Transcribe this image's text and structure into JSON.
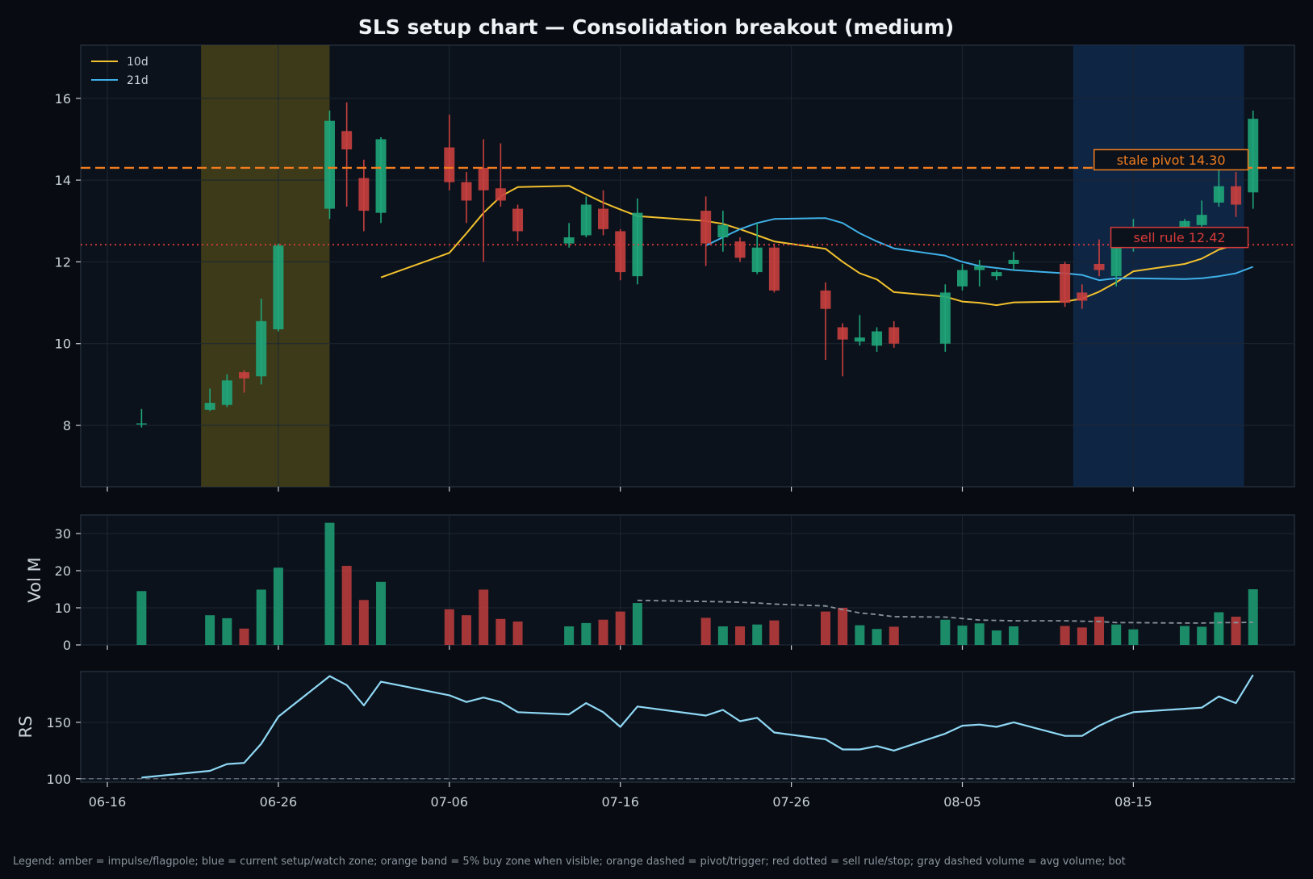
{
  "chart_data": {
    "type": "candlestick",
    "title": "SLS setup chart — Consolidation breakout (medium)",
    "footer_legend": "Legend: amber = impulse/flagpole; blue = current setup/watch zone; orange band = 5% buy zone when visible; orange dashed = pivot/trigger; red dotted = sell rule/stop; gray dashed volume = avg volume; bot",
    "x_ticks": [
      "06-16",
      "06-26",
      "07-06",
      "07-16",
      "07-26",
      "08-05",
      "08-15"
    ],
    "colors": {
      "background": "#080c12",
      "panel": "#0b121b",
      "up": "#1fa67a",
      "down": "#c8403f",
      "ma10": "#f2c12e",
      "ma21": "#3fb1e8",
      "pivot": "#f07c1f",
      "sell": "#d63a3a",
      "rs": "#8fd8f5",
      "avg_volume": "#8b949e",
      "impulse_zone": "#4a4518",
      "watch_zone": "#102a4f"
    },
    "price_panel": {
      "ylim": [
        6.5,
        17.3
      ],
      "yticks": [
        8,
        10,
        12,
        14,
        16
      ],
      "legend": [
        {
          "label": "10d",
          "color": "#f2c12e"
        },
        {
          "label": "21d",
          "color": "#3fb1e8"
        }
      ],
      "legend_position": "top-left",
      "impulse_zone": {
        "from": "06-22",
        "to": "06-29"
      },
      "watch_zone": {
        "from": "08-12",
        "to": "08-21"
      },
      "pivot": {
        "value": 14.3,
        "label": "stale pivot 14.30"
      },
      "sell_rule": {
        "value": 12.42,
        "label": "sell rule 12.42"
      }
    },
    "volume_panel": {
      "ylabel": "Vol M",
      "ylim": [
        0,
        35
      ],
      "yticks": [
        0,
        10,
        20,
        30
      ]
    },
    "rs_panel": {
      "ylabel": "RS",
      "ylim": [
        97,
        195
      ],
      "yticks": [
        100,
        150
      ],
      "baseline": 100
    },
    "candles": [
      {
        "d": "06-18",
        "o": 8.05,
        "h": 8.4,
        "l": 7.95,
        "c": 8.05,
        "v": 14.5
      },
      {
        "d": "06-22",
        "o": 8.38,
        "h": 8.9,
        "l": 8.35,
        "c": 8.55,
        "v": 8.0
      },
      {
        "d": "06-23",
        "o": 8.5,
        "h": 9.25,
        "l": 8.45,
        "c": 9.1,
        "v": 7.2
      },
      {
        "d": "06-24",
        "o": 9.3,
        "h": 9.35,
        "l": 8.8,
        "c": 9.15,
        "v": 4.4
      },
      {
        "d": "06-25",
        "o": 9.2,
        "h": 11.1,
        "l": 9.0,
        "c": 10.55,
        "v": 14.9
      },
      {
        "d": "06-26",
        "o": 10.35,
        "h": 12.45,
        "l": 10.3,
        "c": 12.4,
        "v": 20.8
      },
      {
        "d": "06-29",
        "o": 13.3,
        "h": 15.7,
        "l": 13.05,
        "c": 15.45,
        "v": 32.9
      },
      {
        "d": "06-30",
        "o": 15.2,
        "h": 15.9,
        "l": 13.35,
        "c": 14.75,
        "v": 21.3
      },
      {
        "d": "07-01",
        "o": 14.05,
        "h": 14.5,
        "l": 12.75,
        "c": 13.25,
        "v": 12.1
      },
      {
        "d": "07-02",
        "o": 13.2,
        "h": 15.05,
        "l": 12.95,
        "c": 15.0,
        "v": 17.0
      },
      {
        "d": "07-06",
        "o": 14.8,
        "h": 15.6,
        "l": 13.75,
        "c": 13.95,
        "v": 9.6
      },
      {
        "d": "07-07",
        "o": 13.95,
        "h": 14.2,
        "l": 12.95,
        "c": 13.5,
        "v": 8.0
      },
      {
        "d": "07-08",
        "o": 14.3,
        "h": 15.0,
        "l": 12.0,
        "c": 13.75,
        "v": 14.9
      },
      {
        "d": "07-09",
        "o": 13.8,
        "h": 14.9,
        "l": 13.35,
        "c": 13.5,
        "v": 7.0
      },
      {
        "d": "07-10",
        "o": 13.3,
        "h": 13.4,
        "l": 12.5,
        "c": 12.75,
        "v": 6.3
      },
      {
        "d": "07-13",
        "o": 12.45,
        "h": 12.95,
        "l": 12.35,
        "c": 12.6,
        "v": 5.0
      },
      {
        "d": "07-14",
        "o": 12.65,
        "h": 13.6,
        "l": 12.6,
        "c": 13.4,
        "v": 5.9
      },
      {
        "d": "07-15",
        "o": 13.3,
        "h": 13.75,
        "l": 12.65,
        "c": 12.8,
        "v": 6.8
      },
      {
        "d": "07-16",
        "o": 12.75,
        "h": 12.8,
        "l": 11.55,
        "c": 11.75,
        "v": 9.0
      },
      {
        "d": "07-17",
        "o": 11.65,
        "h": 13.55,
        "l": 11.45,
        "c": 13.2,
        "v": 11.3
      },
      {
        "d": "07-21",
        "o": 13.25,
        "h": 13.6,
        "l": 11.9,
        "c": 12.45,
        "v": 7.3
      },
      {
        "d": "07-22",
        "o": 12.6,
        "h": 13.25,
        "l": 12.25,
        "c": 12.9,
        "v": 5.0
      },
      {
        "d": "07-23",
        "o": 12.5,
        "h": 12.6,
        "l": 12.0,
        "c": 12.1,
        "v": 5.0
      },
      {
        "d": "07-24",
        "o": 11.75,
        "h": 12.95,
        "l": 11.7,
        "c": 12.35,
        "v": 5.5
      },
      {
        "d": "07-25",
        "o": 12.35,
        "h": 12.45,
        "l": 11.25,
        "c": 11.3,
        "v": 6.6
      },
      {
        "d": "07-28",
        "o": 11.3,
        "h": 11.5,
        "l": 9.6,
        "c": 10.85,
        "v": 9.0
      },
      {
        "d": "07-29",
        "o": 10.4,
        "h": 10.5,
        "l": 9.2,
        "c": 10.1,
        "v": 10.0
      },
      {
        "d": "07-30",
        "o": 10.05,
        "h": 10.7,
        "l": 9.95,
        "c": 10.15,
        "v": 5.3
      },
      {
        "d": "07-31",
        "o": 9.95,
        "h": 10.4,
        "l": 9.8,
        "c": 10.3,
        "v": 4.3
      },
      {
        "d": "08-01",
        "o": 10.4,
        "h": 10.55,
        "l": 9.9,
        "c": 10.0,
        "v": 4.9
      },
      {
        "d": "08-04",
        "o": 10.0,
        "h": 11.45,
        "l": 9.8,
        "c": 11.25,
        "v": 6.8
      },
      {
        "d": "08-05",
        "o": 11.4,
        "h": 11.95,
        "l": 11.3,
        "c": 11.8,
        "v": 5.2
      },
      {
        "d": "08-06",
        "o": 11.8,
        "h": 12.05,
        "l": 11.4,
        "c": 11.9,
        "v": 5.8
      },
      {
        "d": "08-07",
        "o": 11.65,
        "h": 11.8,
        "l": 11.55,
        "c": 11.75,
        "v": 3.9
      },
      {
        "d": "08-08",
        "o": 11.95,
        "h": 12.25,
        "l": 11.8,
        "c": 12.05,
        "v": 5.0
      },
      {
        "d": "08-11",
        "o": 11.95,
        "h": 12.0,
        "l": 10.9,
        "c": 11.0,
        "v": 5.1
      },
      {
        "d": "08-12",
        "o": 11.25,
        "h": 11.45,
        "l": 10.85,
        "c": 11.05,
        "v": 4.7
      },
      {
        "d": "08-13",
        "o": 11.95,
        "h": 12.55,
        "l": 11.65,
        "c": 11.8,
        "v": 7.6
      },
      {
        "d": "08-14",
        "o": 11.65,
        "h": 12.55,
        "l": 11.4,
        "c": 12.4,
        "v": 5.5
      },
      {
        "d": "08-15",
        "o": 12.4,
        "h": 13.05,
        "l": 12.25,
        "c": 12.8,
        "v": 4.2
      },
      {
        "d": "08-18",
        "o": 12.85,
        "h": 13.05,
        "l": 12.7,
        "c": 13.0,
        "v": 5.1
      },
      {
        "d": "08-19",
        "o": 12.9,
        "h": 13.5,
        "l": 12.75,
        "c": 13.15,
        "v": 4.9
      },
      {
        "d": "08-20",
        "o": 13.45,
        "h": 14.25,
        "l": 13.35,
        "c": 13.85,
        "v": 8.8
      },
      {
        "d": "08-21",
        "o": 13.85,
        "h": 14.2,
        "l": 13.1,
        "c": 13.4,
        "v": 7.6
      },
      {
        "d": "08-22",
        "o": 13.7,
        "h": 15.7,
        "l": 13.3,
        "c": 15.5,
        "v": 15.0
      }
    ],
    "ma10": [
      {
        "d": "07-02",
        "v": 11.62
      },
      {
        "d": "07-06",
        "v": 12.22
      },
      {
        "d": "07-07",
        "v": 12.7
      },
      {
        "d": "07-08",
        "v": 13.2
      },
      {
        "d": "07-09",
        "v": 13.6
      },
      {
        "d": "07-10",
        "v": 13.83
      },
      {
        "d": "07-13",
        "v": 13.86
      },
      {
        "d": "07-14",
        "v": 13.65
      },
      {
        "d": "07-15",
        "v": 13.45
      },
      {
        "d": "07-16",
        "v": 13.28
      },
      {
        "d": "07-17",
        "v": 13.12
      },
      {
        "d": "07-21",
        "v": 13.0
      },
      {
        "d": "07-22",
        "v": 12.93
      },
      {
        "d": "07-23",
        "v": 12.8
      },
      {
        "d": "07-24",
        "v": 12.65
      },
      {
        "d": "07-25",
        "v": 12.5
      },
      {
        "d": "07-28",
        "v": 12.32
      },
      {
        "d": "07-29",
        "v": 12.0
      },
      {
        "d": "07-30",
        "v": 11.72
      },
      {
        "d": "07-31",
        "v": 11.57
      },
      {
        "d": "08-01",
        "v": 11.26
      },
      {
        "d": "08-04",
        "v": 11.15
      },
      {
        "d": "08-05",
        "v": 11.03
      },
      {
        "d": "08-06",
        "v": 11.0
      },
      {
        "d": "08-07",
        "v": 10.94
      },
      {
        "d": "08-08",
        "v": 11.01
      },
      {
        "d": "08-11",
        "v": 11.03
      },
      {
        "d": "08-12",
        "v": 11.1
      },
      {
        "d": "08-13",
        "v": 11.27
      },
      {
        "d": "08-14",
        "v": 11.5
      },
      {
        "d": "08-15",
        "v": 11.77
      },
      {
        "d": "08-18",
        "v": 11.95
      },
      {
        "d": "08-19",
        "v": 12.08
      },
      {
        "d": "08-20",
        "v": 12.3
      },
      {
        "d": "08-21",
        "v": 12.42
      }
    ],
    "ma21": [
      {
        "d": "07-21",
        "v": 12.4
      },
      {
        "d": "07-22",
        "v": 12.6
      },
      {
        "d": "07-23",
        "v": 12.8
      },
      {
        "d": "07-24",
        "v": 12.95
      },
      {
        "d": "07-25",
        "v": 13.05
      },
      {
        "d": "07-28",
        "v": 13.07
      },
      {
        "d": "07-29",
        "v": 12.95
      },
      {
        "d": "07-30",
        "v": 12.7
      },
      {
        "d": "07-31",
        "v": 12.5
      },
      {
        "d": "08-01",
        "v": 12.33
      },
      {
        "d": "08-04",
        "v": 12.15
      },
      {
        "d": "08-05",
        "v": 12.0
      },
      {
        "d": "08-06",
        "v": 11.9
      },
      {
        "d": "08-07",
        "v": 11.85
      },
      {
        "d": "08-08",
        "v": 11.8
      },
      {
        "d": "08-11",
        "v": 11.72
      },
      {
        "d": "08-12",
        "v": 11.68
      },
      {
        "d": "08-13",
        "v": 11.55
      },
      {
        "d": "08-14",
        "v": 11.6
      },
      {
        "d": "08-15",
        "v": 11.6
      },
      {
        "d": "08-18",
        "v": 11.58
      },
      {
        "d": "08-19",
        "v": 11.6
      },
      {
        "d": "08-20",
        "v": 11.65
      },
      {
        "d": "08-21",
        "v": 11.72
      },
      {
        "d": "08-22",
        "v": 11.88
      }
    ],
    "avg_volume": [
      {
        "d": "07-17",
        "v": 12.0
      },
      {
        "d": "07-21",
        "v": 11.7
      },
      {
        "d": "07-22",
        "v": 11.6
      },
      {
        "d": "07-23",
        "v": 11.5
      },
      {
        "d": "07-24",
        "v": 11.3
      },
      {
        "d": "07-25",
        "v": 11.0
      },
      {
        "d": "07-28",
        "v": 10.5
      },
      {
        "d": "07-29",
        "v": 9.5
      },
      {
        "d": "07-30",
        "v": 8.6
      },
      {
        "d": "07-31",
        "v": 8.2
      },
      {
        "d": "08-01",
        "v": 7.6
      },
      {
        "d": "08-04",
        "v": 7.5
      },
      {
        "d": "08-05",
        "v": 7.1
      },
      {
        "d": "08-06",
        "v": 6.7
      },
      {
        "d": "08-07",
        "v": 6.6
      },
      {
        "d": "08-08",
        "v": 6.5
      },
      {
        "d": "08-11",
        "v": 6.5
      },
      {
        "d": "08-12",
        "v": 6.4
      },
      {
        "d": "08-13",
        "v": 6.3
      },
      {
        "d": "08-14",
        "v": 6.0
      },
      {
        "d": "08-15",
        "v": 6.0
      },
      {
        "d": "08-18",
        "v": 5.9
      },
      {
        "d": "08-19",
        "v": 5.9
      },
      {
        "d": "08-20",
        "v": 6.0
      },
      {
        "d": "08-21",
        "v": 6.0
      },
      {
        "d": "08-22",
        "v": 6.1
      }
    ],
    "rs": [
      {
        "d": "06-18",
        "v": 101
      },
      {
        "d": "06-22",
        "v": 107
      },
      {
        "d": "06-23",
        "v": 113
      },
      {
        "d": "06-24",
        "v": 114
      },
      {
        "d": "06-25",
        "v": 131
      },
      {
        "d": "06-26",
        "v": 155
      },
      {
        "d": "06-29",
        "v": 191
      },
      {
        "d": "06-30",
        "v": 183
      },
      {
        "d": "07-01",
        "v": 165
      },
      {
        "d": "07-02",
        "v": 186
      },
      {
        "d": "07-06",
        "v": 174
      },
      {
        "d": "07-07",
        "v": 168
      },
      {
        "d": "07-08",
        "v": 172
      },
      {
        "d": "07-09",
        "v": 168
      },
      {
        "d": "07-10",
        "v": 159
      },
      {
        "d": "07-13",
        "v": 157
      },
      {
        "d": "07-14",
        "v": 167
      },
      {
        "d": "07-15",
        "v": 159
      },
      {
        "d": "07-16",
        "v": 146
      },
      {
        "d": "07-17",
        "v": 164
      },
      {
        "d": "07-21",
        "v": 156
      },
      {
        "d": "07-22",
        "v": 161
      },
      {
        "d": "07-23",
        "v": 151
      },
      {
        "d": "07-24",
        "v": 154
      },
      {
        "d": "07-25",
        "v": 141
      },
      {
        "d": "07-28",
        "v": 135
      },
      {
        "d": "07-29",
        "v": 126
      },
      {
        "d": "07-30",
        "v": 126
      },
      {
        "d": "07-31",
        "v": 129
      },
      {
        "d": "08-01",
        "v": 125
      },
      {
        "d": "08-04",
        "v": 140
      },
      {
        "d": "08-05",
        "v": 147
      },
      {
        "d": "08-06",
        "v": 148
      },
      {
        "d": "08-07",
        "v": 146
      },
      {
        "d": "08-08",
        "v": 150
      },
      {
        "d": "08-11",
        "v": 138
      },
      {
        "d": "08-12",
        "v": 138
      },
      {
        "d": "08-13",
        "v": 147
      },
      {
        "d": "08-14",
        "v": 154
      },
      {
        "d": "08-15",
        "v": 159
      },
      {
        "d": "08-18",
        "v": 162
      },
      {
        "d": "08-19",
        "v": 163
      },
      {
        "d": "08-20",
        "v": 173
      },
      {
        "d": "08-21",
        "v": 167
      },
      {
        "d": "08-22",
        "v": 192
      }
    ]
  }
}
